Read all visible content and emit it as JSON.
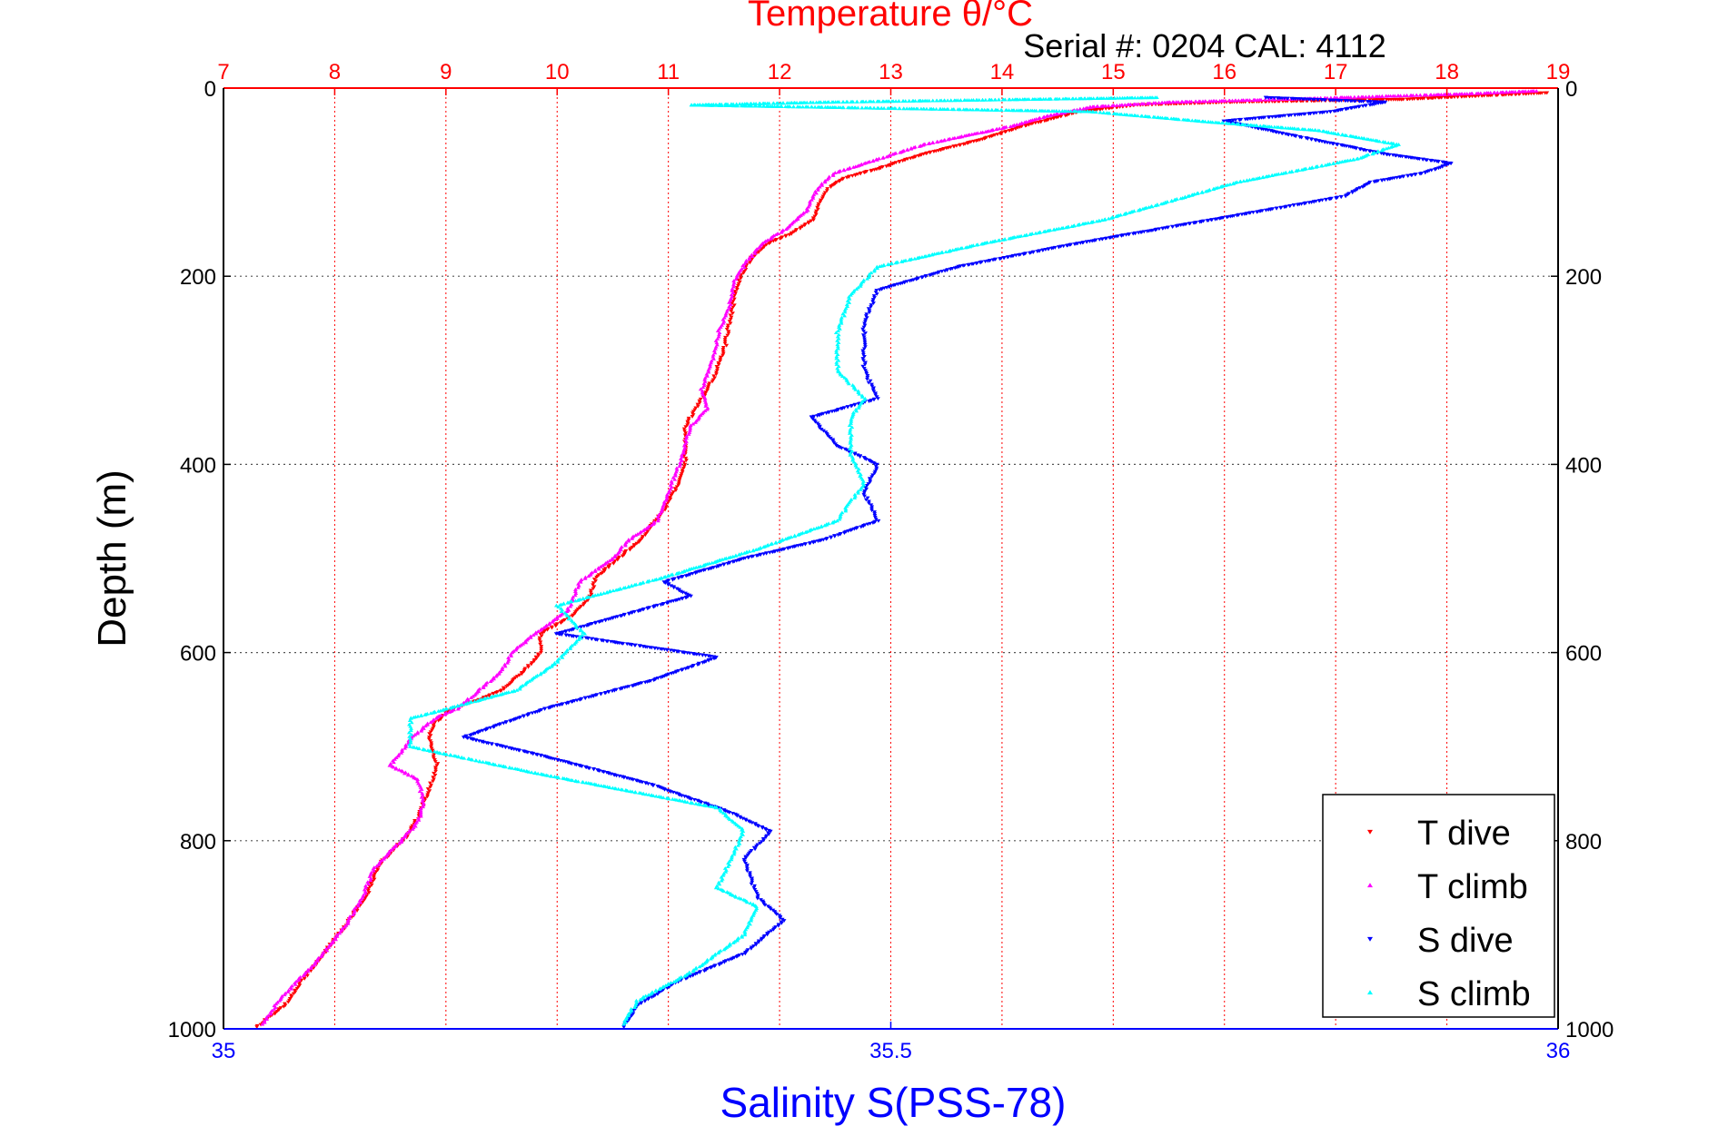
{
  "header": {
    "title": "Temperature θ/°C",
    "serial": "Serial #: 0204  CAL: 4112"
  },
  "chart_data": {
    "type": "scatter",
    "title": "Temperature θ/°C",
    "ylabel": "Depth (m)",
    "xlabel": "Salinity S(PSS-78)",
    "x_top_label": "Temperature θ/°C",
    "y_axis": {
      "range": [
        0,
        1000
      ],
      "inverted": true,
      "ticks": [
        0,
        200,
        400,
        600,
        800,
        1000
      ],
      "tick_labels": [
        "0",
        "200",
        "400",
        "600",
        "800",
        "1000"
      ]
    },
    "x_top_axis": {
      "quantity": "Temperature",
      "range": [
        7,
        19
      ],
      "ticks": [
        7,
        8,
        9,
        10,
        11,
        12,
        13,
        14,
        15,
        16,
        17,
        18,
        19
      ],
      "tick_labels": [
        "7",
        "8",
        "9",
        "10",
        "11",
        "12",
        "13",
        "14",
        "15",
        "16",
        "17",
        "18",
        "19"
      ]
    },
    "x_bottom_axis": {
      "quantity": "Salinity",
      "range": [
        35,
        36
      ],
      "ticks": [
        35,
        35.5,
        36
      ],
      "tick_labels": [
        "35",
        "35.5",
        "36"
      ]
    },
    "grid": true,
    "legend_position": "bottom-right",
    "series": [
      {
        "name": "T dive",
        "axis": "temperature",
        "color": "#ff0000",
        "marker": "triangle-down",
        "points": [
          [
            18.9,
            5
          ],
          [
            17.6,
            12
          ],
          [
            16,
            15
          ],
          [
            15.2,
            18
          ],
          [
            14.7,
            25
          ],
          [
            14.2,
            40
          ],
          [
            13.8,
            55
          ],
          [
            13.3,
            70
          ],
          [
            12.9,
            85
          ],
          [
            12.6,
            95
          ],
          [
            12.45,
            105
          ],
          [
            12.4,
            115
          ],
          [
            12.35,
            125
          ],
          [
            12.3,
            140
          ],
          [
            12.1,
            155
          ],
          [
            11.9,
            165
          ],
          [
            11.75,
            180
          ],
          [
            11.65,
            200
          ],
          [
            11.6,
            220
          ],
          [
            11.55,
            250
          ],
          [
            11.5,
            280
          ],
          [
            11.4,
            310
          ],
          [
            11.25,
            340
          ],
          [
            11.15,
            360
          ],
          [
            11.15,
            380
          ],
          [
            11.15,
            400
          ],
          [
            11.1,
            420
          ],
          [
            10.95,
            450
          ],
          [
            10.75,
            480
          ],
          [
            10.55,
            500
          ],
          [
            10.35,
            520
          ],
          [
            10.3,
            540
          ],
          [
            10.15,
            560
          ],
          [
            9.85,
            580
          ],
          [
            9.85,
            600
          ],
          [
            9.7,
            620
          ],
          [
            9.5,
            640
          ],
          [
            9.3,
            650
          ],
          [
            9.05,
            660
          ],
          [
            8.9,
            675
          ],
          [
            8.85,
            690
          ],
          [
            8.92,
            720
          ],
          [
            8.85,
            745
          ],
          [
            8.75,
            775
          ],
          [
            8.65,
            795
          ],
          [
            8.4,
            825
          ],
          [
            8.3,
            855
          ],
          [
            8.1,
            890
          ],
          [
            7.9,
            920
          ],
          [
            7.7,
            950
          ],
          [
            7.55,
            975
          ],
          [
            7.3,
            998
          ]
        ]
      },
      {
        "name": "T climb",
        "axis": "temperature",
        "color": "#ff00ff",
        "marker": "triangle-up",
        "points": [
          [
            18.8,
            3
          ],
          [
            18.2,
            6
          ],
          [
            16.5,
            12
          ],
          [
            15.5,
            15
          ],
          [
            14.8,
            20
          ],
          [
            14.4,
            30
          ],
          [
            14.1,
            40
          ],
          [
            13.7,
            50
          ],
          [
            13.3,
            60
          ],
          [
            12.9,
            75
          ],
          [
            12.5,
            90
          ],
          [
            12.4,
            100
          ],
          [
            12.3,
            115
          ],
          [
            12.25,
            130
          ],
          [
            12.05,
            150
          ],
          [
            11.85,
            165
          ],
          [
            11.7,
            185
          ],
          [
            11.6,
            205
          ],
          [
            11.55,
            230
          ],
          [
            11.45,
            260
          ],
          [
            11.4,
            290
          ],
          [
            11.3,
            320
          ],
          [
            11.35,
            340
          ],
          [
            11.2,
            360
          ],
          [
            11.1,
            400
          ],
          [
            11,
            430
          ],
          [
            10.9,
            460
          ],
          [
            10.65,
            480
          ],
          [
            10.5,
            500
          ],
          [
            10.2,
            525
          ],
          [
            10.1,
            555
          ],
          [
            9.8,
            580
          ],
          [
            9.6,
            600
          ],
          [
            9.5,
            620
          ],
          [
            9.3,
            640
          ],
          [
            9.1,
            660
          ],
          [
            8.9,
            670
          ],
          [
            8.7,
            690
          ],
          [
            8.5,
            720
          ],
          [
            8.75,
            735
          ],
          [
            8.8,
            760
          ],
          [
            8.75,
            780
          ],
          [
            8.6,
            800
          ],
          [
            8.35,
            830
          ],
          [
            8.25,
            860
          ],
          [
            8.1,
            890
          ],
          [
            7.9,
            920
          ],
          [
            7.7,
            945
          ],
          [
            7.5,
            970
          ],
          [
            7.35,
            995
          ]
        ]
      },
      {
        "name": "S dive",
        "axis": "salinity",
        "color": "#0000ff",
        "marker": "triangle-down",
        "points": [
          [
            35.78,
            10
          ],
          [
            35.87,
            15
          ],
          [
            35.83,
            25
          ],
          [
            35.75,
            35
          ],
          [
            35.8,
            50
          ],
          [
            35.87,
            70
          ],
          [
            35.92,
            80
          ],
          [
            35.9,
            90
          ],
          [
            35.86,
            100
          ],
          [
            35.84,
            115
          ],
          [
            35.76,
            135
          ],
          [
            35.7,
            150
          ],
          [
            35.64,
            165
          ],
          [
            35.55,
            190
          ],
          [
            35.49,
            215
          ],
          [
            35.48,
            250
          ],
          [
            35.48,
            300
          ],
          [
            35.49,
            330
          ],
          [
            35.44,
            350
          ],
          [
            35.46,
            380
          ],
          [
            35.49,
            400
          ],
          [
            35.48,
            430
          ],
          [
            35.49,
            460
          ],
          [
            35.45,
            480
          ],
          [
            35.39,
            500
          ],
          [
            35.33,
            525
          ],
          [
            35.35,
            540
          ],
          [
            35.3,
            560
          ],
          [
            35.25,
            580
          ],
          [
            35.37,
            605
          ],
          [
            35.32,
            630
          ],
          [
            35.24,
            660
          ],
          [
            35.18,
            690
          ],
          [
            35.24,
            710
          ],
          [
            35.32,
            740
          ],
          [
            35.38,
            770
          ],
          [
            35.41,
            790
          ],
          [
            35.39,
            820
          ],
          [
            35.4,
            860
          ],
          [
            35.42,
            885
          ],
          [
            35.39,
            920
          ],
          [
            35.34,
            950
          ],
          [
            35.31,
            975
          ],
          [
            35.3,
            998
          ]
        ]
      },
      {
        "name": "S climb",
        "axis": "salinity",
        "color": "#00ffff",
        "marker": "triangle-up",
        "points": [
          [
            35.7,
            10
          ],
          [
            35.45,
            15
          ],
          [
            35.35,
            18
          ],
          [
            35.65,
            25
          ],
          [
            35.73,
            35
          ],
          [
            35.82,
            45
          ],
          [
            35.88,
            60
          ],
          [
            35.85,
            75
          ],
          [
            35.76,
            100
          ],
          [
            35.66,
            140
          ],
          [
            35.57,
            165
          ],
          [
            35.49,
            190
          ],
          [
            35.47,
            220
          ],
          [
            35.46,
            260
          ],
          [
            35.46,
            300
          ],
          [
            35.48,
            330
          ],
          [
            35.47,
            350
          ],
          [
            35.47,
            390
          ],
          [
            35.48,
            420
          ],
          [
            35.46,
            460
          ],
          [
            35.4,
            490
          ],
          [
            35.33,
            520
          ],
          [
            35.25,
            550
          ],
          [
            35.27,
            580
          ],
          [
            35.25,
            610
          ],
          [
            35.22,
            640
          ],
          [
            35.14,
            670
          ],
          [
            35.14,
            700
          ],
          [
            35.24,
            730
          ],
          [
            35.37,
            765
          ],
          [
            35.39,
            790
          ],
          [
            35.38,
            820
          ],
          [
            35.37,
            850
          ],
          [
            35.4,
            870
          ],
          [
            35.39,
            900
          ],
          [
            35.35,
            940
          ],
          [
            35.31,
            970
          ],
          [
            35.3,
            995
          ]
        ]
      }
    ]
  }
}
